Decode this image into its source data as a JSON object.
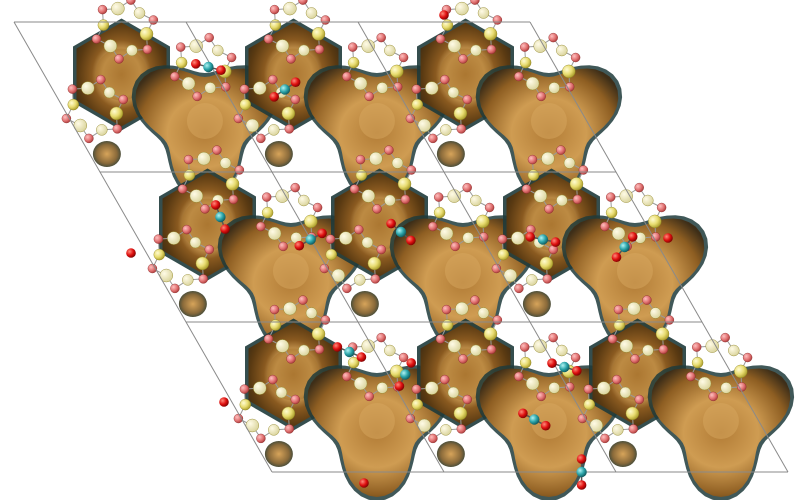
{
  "figure": {
    "kind": "crystal-structure",
    "background": "#ffffff",
    "supercell": {
      "columns": 3,
      "rows": 3
    },
    "colors": {
      "cell_edge": "#8a8a8a",
      "framework_si": "#e2d97a",
      "framework_o": "#e07a7a",
      "framework_bond": "#9a9a9a",
      "iso_surface_base": "#a8752f",
      "iso_surface_light": "#d8a860",
      "iso_surface_dark": "#5a3a12",
      "iso_surface_rim": "#1f3b3b",
      "guest_oxygen": "#dd1111",
      "guest_carbon": "#2aa3a8"
    }
  }
}
